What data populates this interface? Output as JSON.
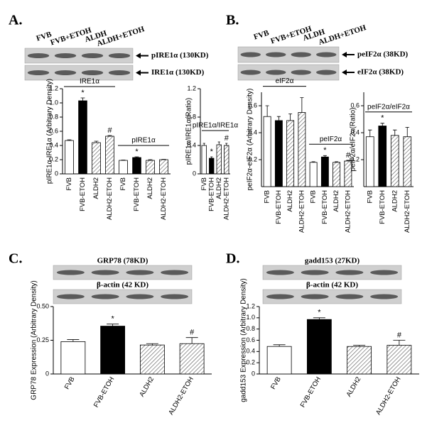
{
  "chart_data": [
    {
      "type": "bar",
      "panel": "A.",
      "blot_lanes": [
        "FVB",
        "FVB+ETOH",
        "ALDH",
        "ALDH+ETOH"
      ],
      "blot_labels": [
        "pIRE1α (130KD)",
        "IRE1α (130KD)"
      ],
      "ylabel": "pIRE1α-IRE1α (Arbitrary Density)",
      "categories": [
        "FVB",
        "FVB-ETOH",
        "ALDH2",
        "ALDH2-ETOH"
      ],
      "colors": [
        "#ffffff",
        "#000000",
        "#ffffff",
        "#ffffff"
      ],
      "hatched": [
        false,
        false,
        true,
        true
      ],
      "series": [
        {
          "name": "IRE1α",
          "values": [
            0.47,
            1.03,
            0.44,
            0.53
          ],
          "errors": [
            0.01,
            0.04,
            0.02,
            0.01
          ],
          "markers": [
            null,
            "*",
            null,
            "#"
          ]
        },
        {
          "name": "pIRE1α",
          "values": [
            0.19,
            0.23,
            0.19,
            0.2
          ],
          "errors": [
            0.005,
            0.01,
            0.01,
            0.005
          ],
          "markers": [
            null,
            "*",
            null,
            null
          ]
        }
      ],
      "ylim": [
        0,
        1.2
      ],
      "yticks": [
        0,
        0.2,
        0.4,
        0.6,
        0.8,
        {
          "value": 1,
          "label": "1.0"
        },
        1.2
      ]
    },
    {
      "type": "bar",
      "ylabel": "pIRE1α/IRE1α(Ratio)",
      "categories": [
        "FVB",
        "FVB-ETOH",
        "ALDH2",
        "ALDH2-ETOH"
      ],
      "colors": [
        "#ffffff",
        "#000000",
        "#ffffff",
        "#ffffff"
      ],
      "hatched": [
        false,
        false,
        true,
        true
      ],
      "series": [
        {
          "name": "pIRE1α/IRE1α",
          "values": [
            0.4,
            0.22,
            0.41,
            0.4
          ],
          "errors": [
            0.03,
            0.02,
            0.04,
            0.03
          ],
          "markers": [
            null,
            "*",
            null,
            "#"
          ]
        }
      ],
      "ylim": [
        0,
        1.2
      ],
      "yticks": [
        0,
        0.4,
        0.8,
        1.2
      ]
    },
    {
      "type": "bar",
      "panel": "B.",
      "blot_lanes": [
        "FVB",
        "FVB+ETOH",
        "ALDH",
        "ALDH+ETOH"
      ],
      "blot_labels": [
        "peIF2α (38KD)",
        "eIF2α (38KD)"
      ],
      "ylabel": "peIF2α-eIF2α (Arbitrary Density)",
      "categories": [
        "FVB",
        "FVB-ETOH",
        "ALDH2",
        "ALDH2-ETOH"
      ],
      "colors": [
        "#ffffff",
        "#000000",
        "#ffffff",
        "#ffffff"
      ],
      "hatched": [
        false,
        false,
        true,
        true
      ],
      "series": [
        {
          "name": "eIF2α",
          "values": [
            0.52,
            0.49,
            0.49,
            0.55
          ],
          "errors": [
            0.08,
            0.03,
            0.05,
            0.11
          ],
          "markers": [
            null,
            null,
            null,
            null
          ]
        },
        {
          "name": "peIF2α",
          "values": [
            0.18,
            0.22,
            0.18,
            0.19
          ],
          "errors": [
            0.005,
            0.01,
            0.005,
            0.005
          ],
          "markers": [
            null,
            "*",
            null,
            "#"
          ]
        }
      ],
      "ylim": [
        0,
        0.7
      ],
      "yticks": [
        0.2,
        0.4,
        0.6
      ]
    },
    {
      "type": "bar",
      "ylabel": "peIF2α/eIF2α(Ratio)",
      "categories": [
        "FVB",
        "FVB-ETOH",
        "ALDH2",
        "ALDH2-ETOH"
      ],
      "colors": [
        "#ffffff",
        "#000000",
        "#ffffff",
        "#ffffff"
      ],
      "hatched": [
        false,
        false,
        true,
        true
      ],
      "series": [
        {
          "name": "peIF2α/eIF2α",
          "values": [
            0.37,
            0.45,
            0.38,
            0.37
          ],
          "errors": [
            0.05,
            0.02,
            0.04,
            0.07
          ],
          "markers": [
            null,
            "*",
            null,
            null
          ]
        }
      ],
      "ylim": [
        0,
        0.7
      ],
      "yticks": [
        0.2,
        0.4,
        0.6
      ]
    },
    {
      "type": "bar",
      "panel": "C.",
      "blot_labels": [
        "GRP78 (78KD)",
        "β-actin (42 KD)"
      ],
      "ylabel": "GRP78 Expression (Arbitrary Density)",
      "categories": [
        "FVB",
        "FVB-ETOH",
        "ALDH2",
        "ALDH2-ETOH"
      ],
      "colors": [
        "#ffffff",
        "#000000",
        "#ffffff",
        "#ffffff"
      ],
      "hatched": [
        false,
        false,
        true,
        true
      ],
      "series": [
        {
          "values": [
            0.24,
            0.355,
            0.215,
            0.225
          ],
          "errors": [
            0.015,
            0.015,
            0.01,
            0.045
          ],
          "markers": [
            null,
            "*",
            null,
            "#"
          ]
        }
      ],
      "ylim": [
        0,
        0.5
      ],
      "yticks": [
        0,
        0.25,
        {
          "value": 0.5,
          "label": "0.50"
        }
      ]
    },
    {
      "type": "bar",
      "panel": "D.",
      "blot_labels": [
        "gadd153 (27KD)",
        "β-actin (42 KD)"
      ],
      "ylabel": "gadd153 Expression (Arbitrary Density)",
      "categories": [
        "FVB",
        "FVB-ETOH",
        "ALDH2",
        "ALDH2-ETOH"
      ],
      "colors": [
        "#ffffff",
        "#000000",
        "#ffffff",
        "#ffffff"
      ],
      "hatched": [
        false,
        false,
        true,
        true
      ],
      "series": [
        {
          "values": [
            0.49,
            0.97,
            0.49,
            0.51
          ],
          "errors": [
            0.03,
            0.03,
            0.02,
            0.09
          ],
          "markers": [
            null,
            "*",
            null,
            "#"
          ]
        }
      ],
      "ylim": [
        0,
        1.2
      ],
      "yticks": [
        0,
        0.2,
        0.4,
        0.6,
        0.8,
        {
          "value": 1,
          "label": "1.0"
        },
        1.2
      ]
    }
  ]
}
